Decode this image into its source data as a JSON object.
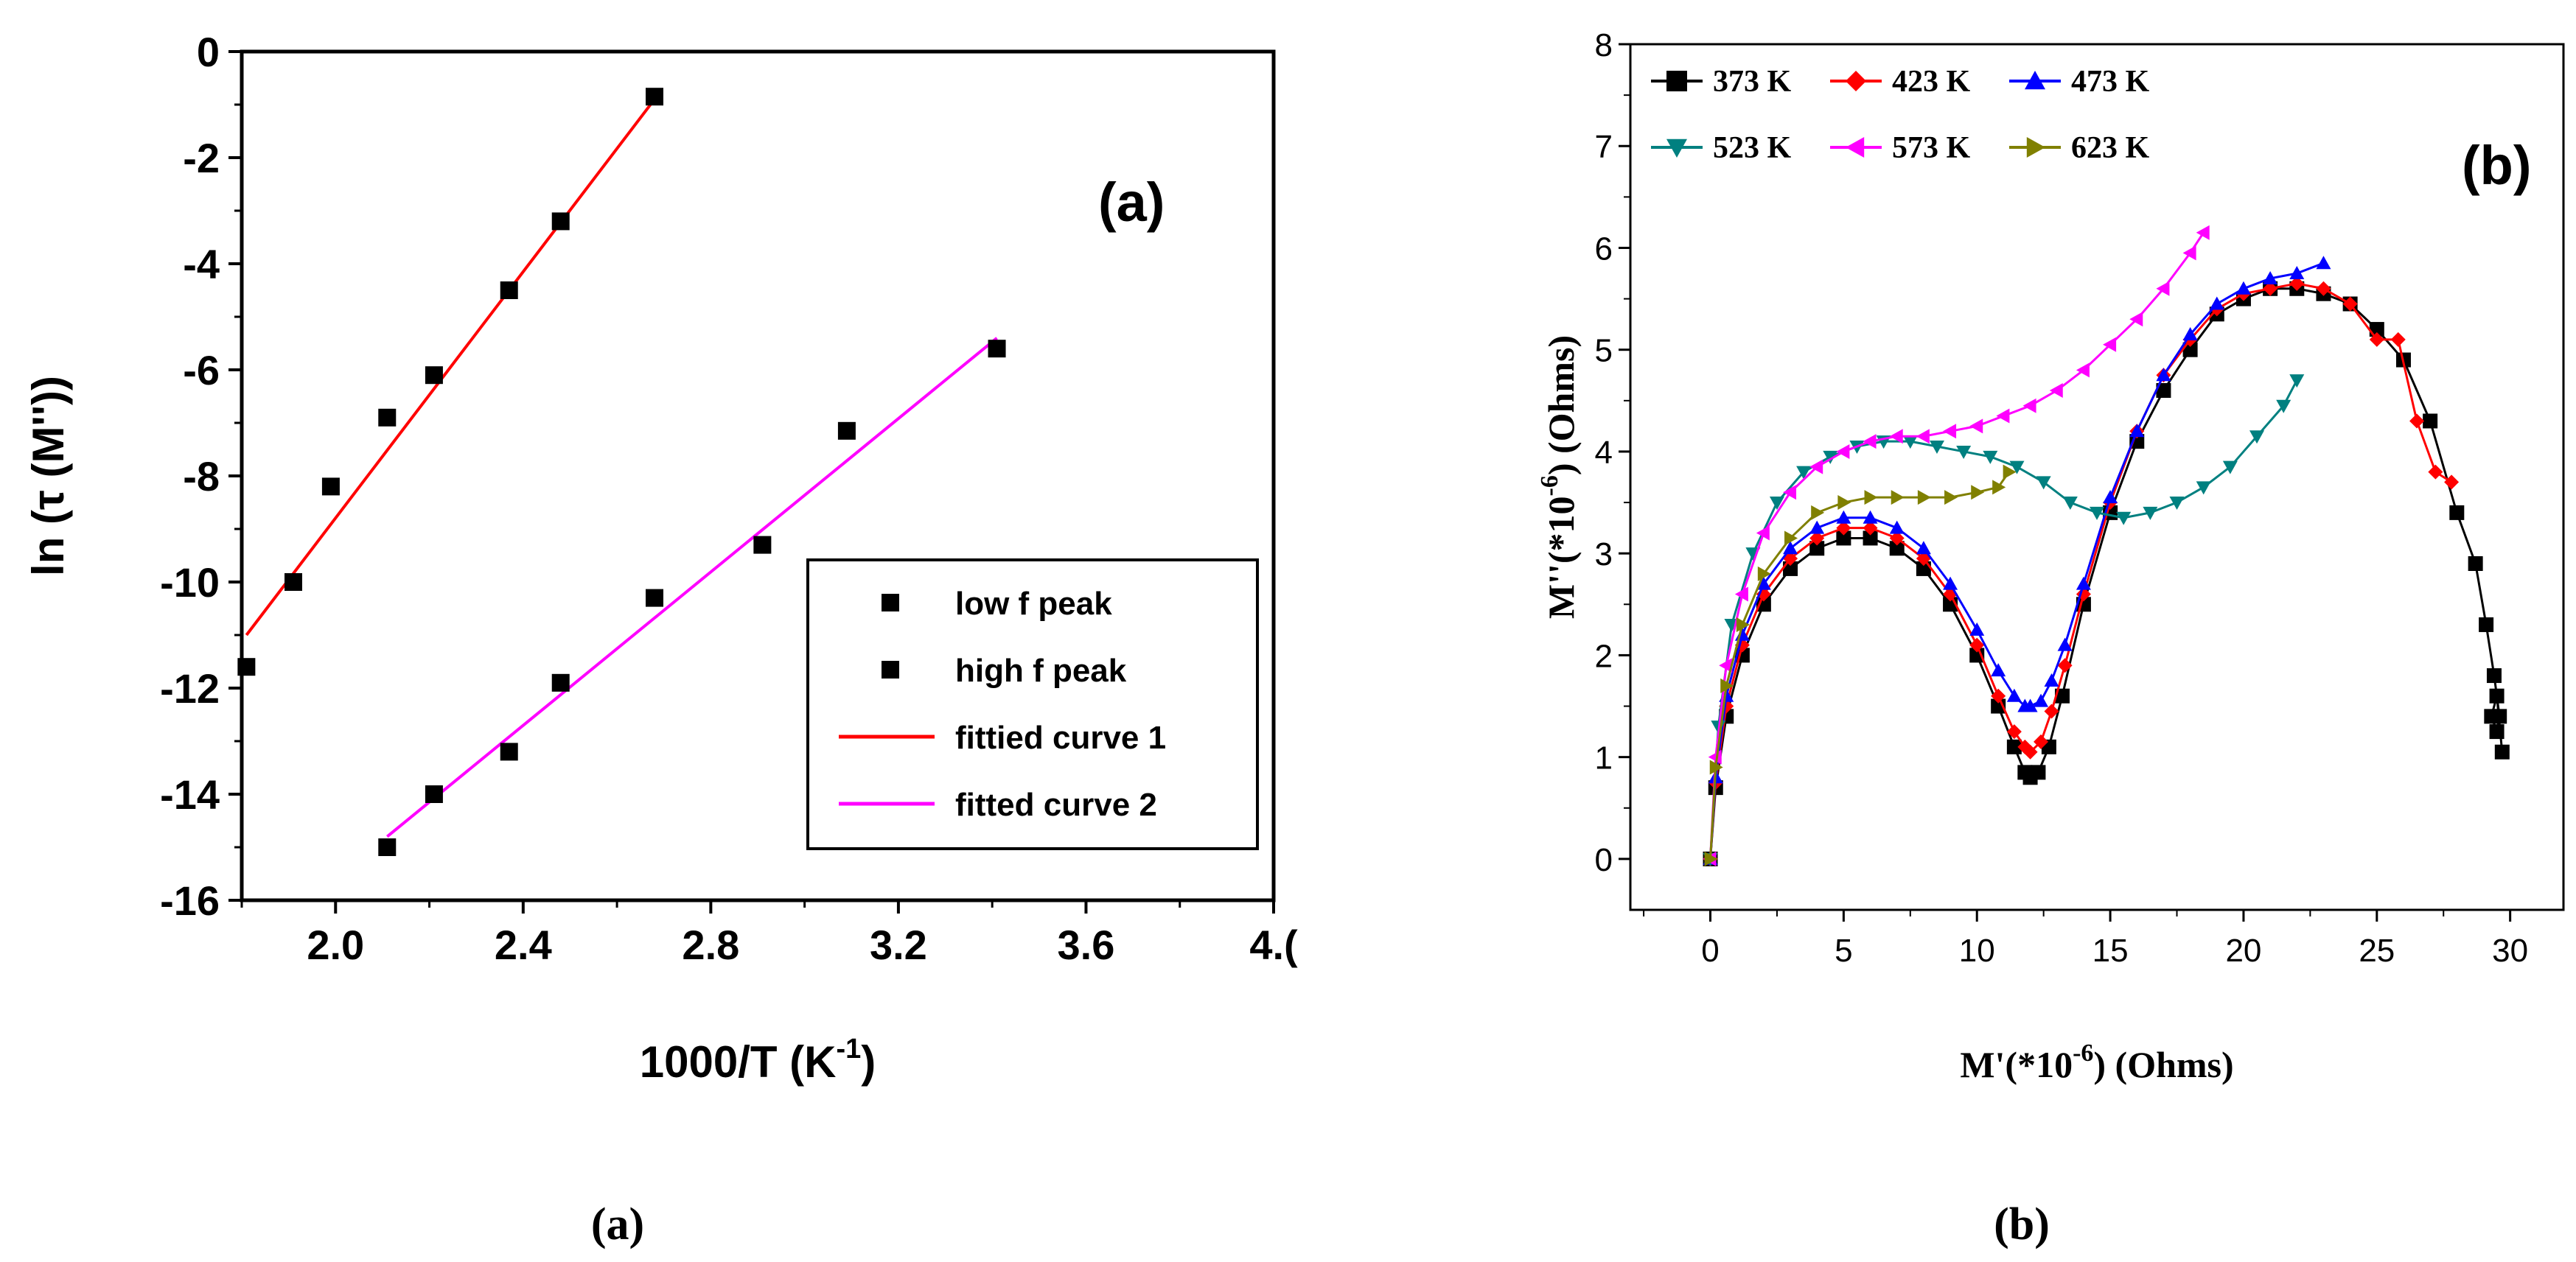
{
  "chart_data": [
    {
      "type": "scatter",
      "panel_label": "(a)",
      "caption": "(a)",
      "xlabel": "1000/T (K",
      "xlabel_sup": "-1",
      "xlabel_end": ")",
      "ylabel": "ln (τ (M''))",
      "xlim": [
        1.8,
        4.0
      ],
      "ylim": [
        -16,
        0
      ],
      "xticks": [
        2.0,
        2.4,
        2.8,
        3.2,
        3.6,
        4.0
      ],
      "xtick_labels": [
        "2.0",
        "2.4",
        "2.8",
        "3.2",
        "3.6",
        "4.("
      ],
      "yticks": [
        0,
        -2,
        -4,
        -6,
        -8,
        -10,
        -12,
        -14,
        -16
      ],
      "ytick_labels": [
        "0",
        "-2",
        "-4",
        "-6",
        "-8",
        "-10",
        "-12",
        "-14",
        "-16"
      ],
      "series": [
        {
          "name": "low f peak",
          "kind": "points",
          "color": "#000000",
          "x": [
            1.81,
            1.91,
            1.99,
            2.11,
            2.21,
            2.37,
            2.48,
            2.68
          ],
          "y": [
            -11.6,
            -10.0,
            -8.2,
            -6.9,
            -6.1,
            -4.5,
            -3.2,
            -0.85
          ]
        },
        {
          "name": "high f peak",
          "kind": "points",
          "color": "#000000",
          "x": [
            2.11,
            2.21,
            2.37,
            2.48,
            2.68,
            2.91,
            3.09,
            3.41
          ],
          "y": [
            -15.0,
            -14.0,
            -13.2,
            -11.9,
            -10.3,
            -9.3,
            -7.15,
            -5.6
          ]
        },
        {
          "name": "fittied curve 1",
          "kind": "line",
          "color": "#ff0000",
          "x": [
            1.81,
            2.68
          ],
          "y": [
            -11.0,
            -0.9
          ]
        },
        {
          "name": "fitted curve 2",
          "kind": "line",
          "color": "#ff00ff",
          "x": [
            2.11,
            3.41
          ],
          "y": [
            -14.8,
            -5.4
          ]
        }
      ]
    },
    {
      "type": "line",
      "panel_label": "(b)",
      "caption": "(b)",
      "xlabel": "M'(*10",
      "xlabel_sup": "-6",
      "xlabel_end": ") (Ohms)",
      "ylabel": "M''(*10",
      "ylabel_sup": "-6",
      "ylabel_end": ") (Ohms)",
      "xlim": [
        -3,
        32
      ],
      "ylim": [
        -0.5,
        8
      ],
      "xticks": [
        0,
        5,
        10,
        15,
        20,
        25,
        30
      ],
      "xtick_labels": [
        "0",
        "5",
        "10",
        "15",
        "20",
        "25",
        "30"
      ],
      "yticks": [
        0,
        1,
        2,
        3,
        4,
        5,
        6,
        7,
        8
      ],
      "ytick_labels": [
        "0",
        "1",
        "2",
        "3",
        "4",
        "5",
        "6",
        "7",
        "8"
      ],
      "series": [
        {
          "name": "373 K",
          "marker": "square",
          "color": "#000000",
          "x": [
            0,
            0.2,
            0.6,
            1.2,
            2,
            3,
            4,
            5,
            6,
            7,
            8,
            9,
            10,
            10.8,
            11.4,
            11.8,
            12,
            12.3,
            12.7,
            13.2,
            14,
            15,
            16,
            17,
            18,
            19,
            20,
            21,
            22,
            23,
            24,
            25,
            26,
            27,
            28,
            28.7,
            29.1,
            29.4,
            29.6,
            29.5,
            29.3,
            29.5,
            29.7
          ],
          "y": [
            0,
            0.7,
            1.4,
            2.0,
            2.5,
            2.85,
            3.05,
            3.15,
            3.15,
            3.05,
            2.85,
            2.5,
            2.0,
            1.5,
            1.1,
            0.85,
            0.8,
            0.85,
            1.1,
            1.6,
            2.5,
            3.4,
            4.1,
            4.6,
            5.0,
            5.35,
            5.5,
            5.6,
            5.6,
            5.55,
            5.45,
            5.2,
            4.9,
            4.3,
            3.4,
            2.9,
            2.3,
            1.8,
            1.4,
            1.25,
            1.4,
            1.6,
            1.05
          ]
        },
        {
          "name": "423 K",
          "marker": "diamond",
          "color": "#ff0000",
          "x": [
            0,
            0.2,
            0.6,
            1.2,
            2,
            3,
            4,
            5,
            6,
            7,
            8,
            9,
            10,
            10.8,
            11.4,
            11.8,
            12,
            12.4,
            12.8,
            13.3,
            14,
            15,
            16,
            17,
            18,
            19,
            20,
            21,
            22,
            23,
            24,
            25,
            25.8,
            26.5,
            27.2,
            27.8
          ],
          "y": [
            0,
            0.75,
            1.5,
            2.1,
            2.6,
            2.95,
            3.15,
            3.25,
            3.25,
            3.15,
            2.95,
            2.6,
            2.1,
            1.6,
            1.25,
            1.1,
            1.05,
            1.15,
            1.45,
            1.9,
            2.6,
            3.5,
            4.2,
            4.75,
            5.1,
            5.4,
            5.55,
            5.6,
            5.65,
            5.6,
            5.45,
            5.1,
            5.1,
            4.3,
            3.8,
            3.7
          ]
        },
        {
          "name": "473 K",
          "marker": "triangle-up",
          "color": "#0000ff",
          "x": [
            0,
            0.2,
            0.6,
            1.2,
            2,
            3,
            4,
            5,
            6,
            7,
            8,
            9,
            10,
            10.8,
            11.4,
            11.8,
            12,
            12.4,
            12.8,
            13.3,
            14,
            15,
            16,
            17,
            18,
            19,
            20,
            21,
            22,
            23
          ],
          "y": [
            0,
            0.8,
            1.6,
            2.2,
            2.7,
            3.05,
            3.25,
            3.35,
            3.35,
            3.25,
            3.05,
            2.7,
            2.25,
            1.85,
            1.6,
            1.5,
            1.5,
            1.55,
            1.75,
            2.1,
            2.7,
            3.55,
            4.2,
            4.75,
            5.15,
            5.45,
            5.6,
            5.7,
            5.75,
            5.85
          ]
        },
        {
          "name": "523 K",
          "marker": "triangle-down",
          "color": "#008080",
          "x": [
            0,
            0.3,
            0.8,
            1.6,
            2.5,
            3.5,
            4.5,
            5.5,
            6.5,
            7.5,
            8.5,
            9.5,
            10.5,
            11.5,
            12.5,
            13.5,
            14.5,
            15.5,
            16.5,
            17.5,
            18.5,
            19.5,
            20.5,
            21.5,
            22
          ],
          "y": [
            0,
            1.3,
            2.3,
            3.0,
            3.5,
            3.8,
            3.95,
            4.05,
            4.1,
            4.1,
            4.05,
            4.0,
            3.95,
            3.85,
            3.7,
            3.5,
            3.4,
            3.35,
            3.4,
            3.5,
            3.65,
            3.85,
            4.15,
            4.45,
            4.7
          ]
        },
        {
          "name": "573 K",
          "marker": "triangle-left",
          "color": "#ff00ff",
          "x": [
            0,
            0.2,
            0.6,
            1.2,
            2,
            3,
            4,
            5,
            6,
            7,
            8,
            9,
            10,
            11,
            12,
            13,
            14,
            15,
            16,
            17,
            18,
            18.5
          ],
          "y": [
            0,
            1.0,
            1.9,
            2.6,
            3.2,
            3.6,
            3.85,
            4.0,
            4.1,
            4.15,
            4.15,
            4.2,
            4.25,
            4.35,
            4.45,
            4.6,
            4.8,
            5.05,
            5.3,
            5.6,
            5.95,
            6.15
          ]
        },
        {
          "name": "623 K",
          "marker": "triangle-right",
          "color": "#808000",
          "x": [
            0,
            0.2,
            0.6,
            1.2,
            2,
            3,
            4,
            5,
            6,
            7,
            8,
            9,
            10,
            10.8,
            11.2
          ],
          "y": [
            0,
            0.9,
            1.7,
            2.3,
            2.8,
            3.15,
            3.4,
            3.5,
            3.55,
            3.55,
            3.55,
            3.55,
            3.6,
            3.65,
            3.8
          ]
        }
      ]
    }
  ]
}
